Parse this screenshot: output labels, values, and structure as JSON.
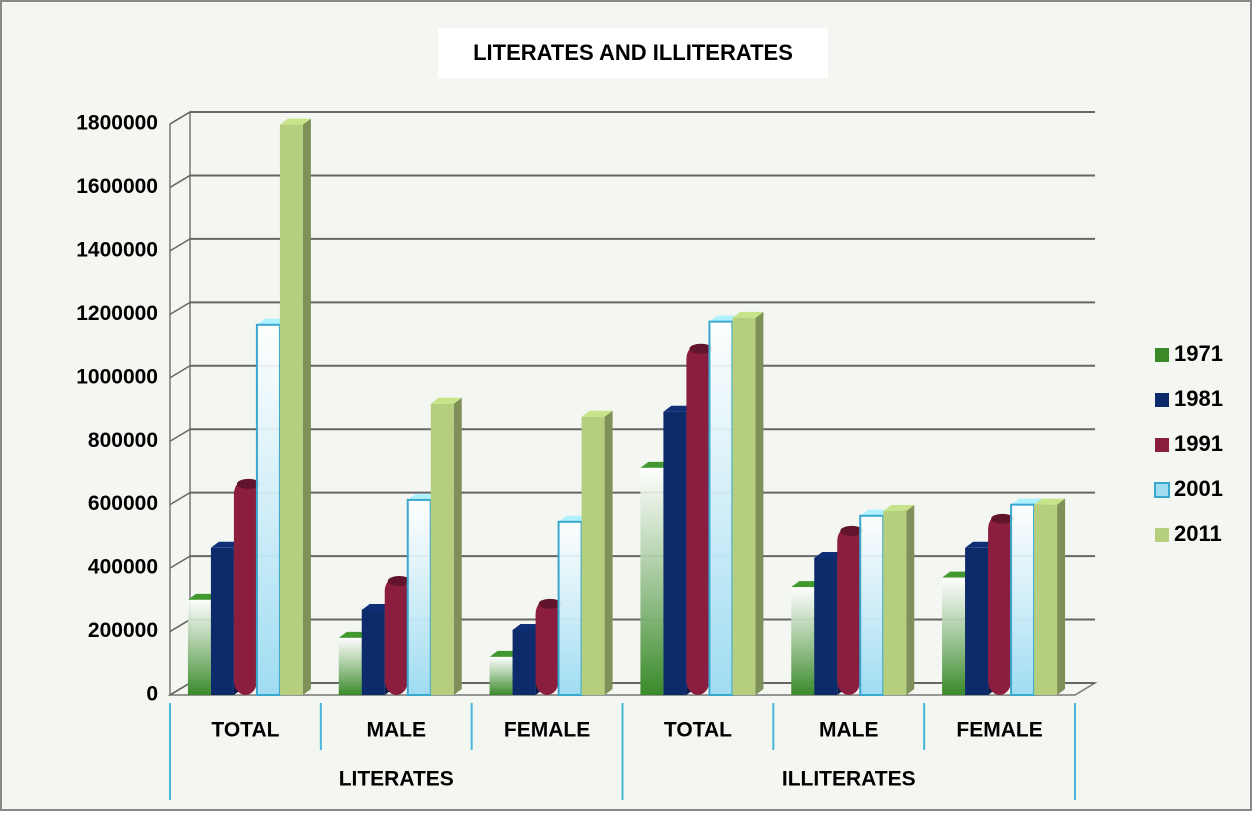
{
  "chart_data": {
    "type": "bar3d",
    "title": "LITERATES AND ILLITERATES",
    "categories": [
      "TOTAL",
      "MALE",
      "FEMALE",
      "TOTAL",
      "MALE",
      "FEMALE"
    ],
    "groups": [
      "LITERATES",
      "ILLITERATES"
    ],
    "series": [
      {
        "name": "1971",
        "color": "#3a8a2a",
        "values": [
          300000,
          180000,
          120000,
          716000,
          340000,
          370000
        ]
      },
      {
        "name": "1981",
        "color": "#0d2a6b",
        "values": [
          464000,
          268000,
          205000,
          893000,
          432000,
          464000
        ]
      },
      {
        "name": "1991",
        "color": "#8b1d3f",
        "values": [
          678000,
          372000,
          300000,
          1104000,
          530000,
          568000
        ]
      },
      {
        "name": "2001",
        "color": "#9fdcf2",
        "values": [
          1167000,
          615000,
          546000,
          1177000,
          565000,
          600000
        ]
      },
      {
        "name": "2011",
        "color": "#b5cf7e",
        "values": [
          1798000,
          918000,
          877000,
          1189000,
          580000,
          600000
        ]
      }
    ],
    "ylim": [
      0,
      1800000
    ],
    "yticks": [
      0,
      200000,
      400000,
      600000,
      800000,
      1000000,
      1200000,
      1400000,
      1600000,
      1800000
    ],
    "grid": true
  }
}
